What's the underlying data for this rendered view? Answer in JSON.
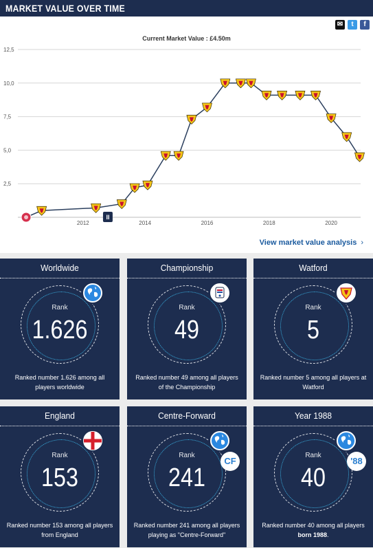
{
  "header": {
    "title": "MARKET VALUE OVER TIME"
  },
  "share_icons": [
    "email-icon",
    "twitter-icon",
    "facebook-icon"
  ],
  "chart_data": {
    "type": "line",
    "title": "Current Market Value : £4.50m",
    "ylim": [
      0,
      12.5
    ],
    "yticks": [
      "12,5",
      "10,0",
      "7,5",
      "5,0",
      "2,5"
    ],
    "xticks": [
      "2012",
      "2014",
      "2016",
      "2018",
      "2020"
    ],
    "grid": true,
    "x": [
      "2010-03",
      "2010-09",
      "2012-06",
      "2013-04",
      "2013-09",
      "2014-02",
      "2014-09",
      "2015-02",
      "2015-07",
      "2016-01",
      "2016-08",
      "2017-02",
      "2017-06",
      "2017-12",
      "2018-06",
      "2019-01",
      "2019-07",
      "2020-01",
      "2020-07",
      "2020-12"
    ],
    "values": [
      0.0,
      0.5,
      0.7,
      1.0,
      2.2,
      2.4,
      4.6,
      4.6,
      7.3,
      8.2,
      10.0,
      10.0,
      10.0,
      9.1,
      9.1,
      9.1,
      9.1,
      7.4,
      6.0,
      4.5
    ],
    "annotations": [
      {
        "label": "II",
        "year": 2012.8
      }
    ],
    "marker_colors": {
      "club": "#f5c518",
      "club_accent": "#c8102e",
      "line": "#2b3f5e",
      "first_marker": "#d6304d"
    }
  },
  "analysis_link": {
    "label": "View market value analysis"
  },
  "cards": [
    {
      "title": "Worldwide",
      "rank_label": "Rank",
      "rank": "1.626",
      "desc_before": "Ranked number 1.626 among all players worldwide",
      "desc_bold": "",
      "desc_after": "",
      "badge": "globe-icon"
    },
    {
      "title": "Championship",
      "rank_label": "Rank",
      "rank": "49",
      "desc_before": "Ranked number 49 among all players of the Championship",
      "desc_bold": "",
      "desc_after": "",
      "badge": "championship-logo"
    },
    {
      "title": "Watford",
      "rank_label": "Rank",
      "rank": "5",
      "desc_before": "Ranked number 5 among all players at Watford",
      "desc_bold": "",
      "desc_after": "",
      "badge": "watford-crest"
    },
    {
      "title": "England",
      "rank_label": "Rank",
      "rank": "153",
      "desc_before": "Ranked number 153 among all players from England",
      "desc_bold": "",
      "desc_after": "",
      "badge": "england-flag"
    },
    {
      "title": "Centre-Forward",
      "rank_label": "Rank",
      "rank": "241",
      "desc_before": "Ranked number 241 among all players playing as \"Centre-Forward\"",
      "desc_bold": "",
      "desc_after": "",
      "badge": "globe-icon",
      "sub_badge": "CF"
    },
    {
      "title": "Year 1988",
      "rank_label": "Rank",
      "rank": "40",
      "desc_before": "Ranked number 40 among all players ",
      "desc_bold": "born 1988",
      "desc_after": ".",
      "badge": "globe-icon",
      "sub_badge": "'88"
    }
  ],
  "colors": {
    "navy": "#1d2d4f",
    "accent_blue": "#3bb6e8",
    "link": "#1a5a9e"
  }
}
